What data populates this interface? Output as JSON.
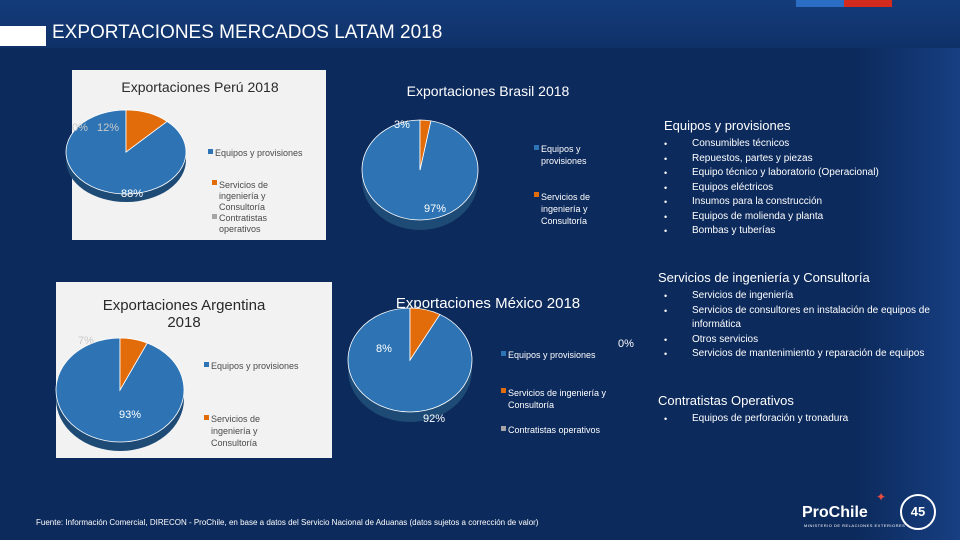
{
  "header": {
    "title": "EXPORTACIONES MERCADOS LATAM 2018"
  },
  "colors": {
    "primary": "#2e74b5",
    "secondary": "#e26b0a",
    "tertiary": "#a5a5a5",
    "background": "#0c2a5c"
  },
  "chart_data": [
    {
      "id": "peru",
      "type": "pie",
      "title": "Exportaciones Perú 2018",
      "categories": [
        "Equipos y provisiones",
        "Servicios de ingeniería y Consultoría",
        "Contratistas operativos"
      ],
      "values": [
        88,
        12,
        0
      ],
      "labels": [
        "88%",
        "12%",
        "0%"
      ],
      "legend": [
        "Equipos y provisiones",
        "Servicios de ingeniería y Consultoría",
        "Contratistas operativos"
      ]
    },
    {
      "id": "brasil",
      "type": "pie",
      "title": "Exportaciones Brasil 2018",
      "categories": [
        "Equipos y provisiones",
        "Servicios de ingeniería y Consultoría"
      ],
      "values": [
        97,
        3
      ],
      "labels": [
        "97%",
        "3%"
      ],
      "legend": [
        "Equipos y provisiones",
        "Servicios de ingeniería y Consultoría"
      ]
    },
    {
      "id": "argentina",
      "type": "pie",
      "title": "Exportaciones Argentina 2018",
      "categories": [
        "Equipos y provisiones",
        "Servicios de ingeniería y Consultoría"
      ],
      "values": [
        93,
        7
      ],
      "labels": [
        "93%",
        "7%"
      ],
      "legend": [
        "Equipos y provisiones",
        "Servicios de ingeniería y Consultoría"
      ]
    },
    {
      "id": "mexico",
      "type": "pie",
      "title": "Exportaciones México 2018",
      "categories": [
        "Equipos y provisiones",
        "Servicios de ingeniería y Consultoría",
        "Contratistas operativos"
      ],
      "values": [
        92,
        8,
        0
      ],
      "labels": [
        "92%",
        "8%",
        "0%"
      ],
      "legend": [
        "Equipos y provisiones",
        "Servicios de ingeniería y Consultoría",
        "Contratistas operativos"
      ]
    }
  ],
  "info": {
    "equipos": {
      "title": "Equipos y provisiones",
      "items": [
        "Consumibles técnicos",
        "Repuestos, partes y piezas",
        "Equipo técnico y laboratorio (Operacional)",
        "Equipos eléctricos",
        "Insumos para la construcción",
        "Equipos de molienda y planta",
        "Bombas y tuberías"
      ]
    },
    "ingenieria": {
      "title": "Servicios de ingeniería y Consultoría",
      "items": [
        "Servicios de ingeniería",
        "Servicios de consultores en instalación de equipos de informática",
        "Otros servicios",
        "Servicios de mantenimiento y reparación de equipos"
      ]
    },
    "contratistas": {
      "title": "Contratistas Operativos",
      "items": [
        "Equipos de perforación y tronadura"
      ]
    }
  },
  "footnote": "Fuente: Información Comercial, DIRECON - ProChile, en base a datos del Servicio Nacional de Aduanas (datos sujetos a corrección de valor)",
  "logo": {
    "name": "ProChile",
    "tagline": "MINISTERIO DE RELACIONES EXTERIORES",
    "badge": "45"
  }
}
